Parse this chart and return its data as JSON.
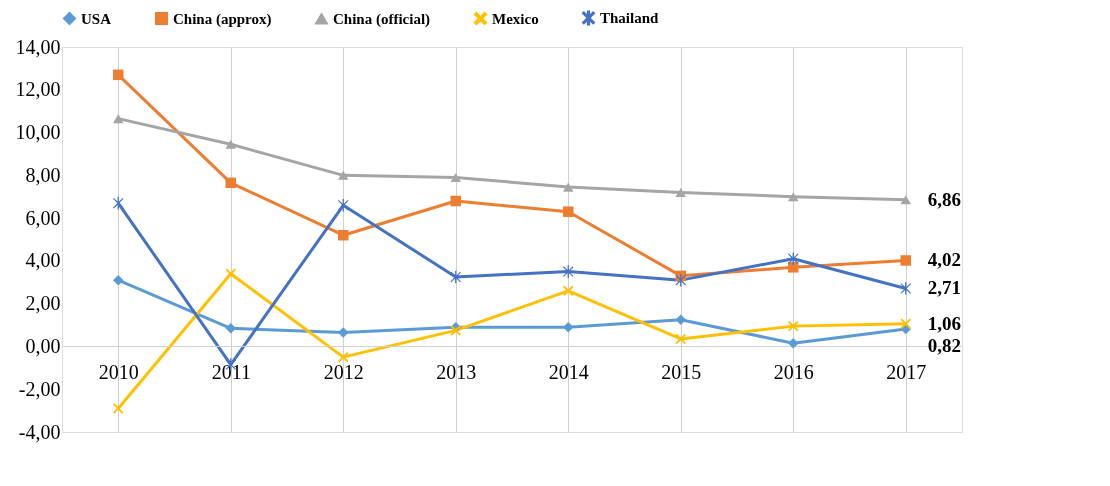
{
  "chart_data": {
    "type": "line",
    "categories": [
      "2010",
      "2011",
      "2012",
      "2013",
      "2014",
      "2015",
      "2016",
      "2017"
    ],
    "series": [
      {
        "name": "USA",
        "color": "#5b9bd5",
        "marker": "diamond",
        "values": [
          3.1,
          0.85,
          0.65,
          0.9,
          0.9,
          1.25,
          0.15,
          0.82
        ],
        "value_labels": [
          null,
          null,
          null,
          null,
          null,
          null,
          null,
          "0,82"
        ]
      },
      {
        "name": "China (approx)",
        "color": "#ed7d31",
        "marker": "square",
        "values": [
          12.7,
          7.65,
          5.2,
          6.8,
          6.3,
          3.3,
          3.7,
          4.02
        ],
        "value_labels": [
          null,
          null,
          null,
          null,
          null,
          null,
          null,
          "4,02"
        ]
      },
      {
        "name": "China (official)",
        "color": "#a5a5a5",
        "marker": "triangle",
        "values": [
          10.65,
          9.45,
          8.0,
          7.9,
          7.45,
          7.2,
          7.0,
          6.86
        ],
        "value_labels": [
          null,
          null,
          null,
          null,
          null,
          null,
          null,
          "6,86"
        ]
      },
      {
        "name": "Mexico",
        "color": "#ffc000",
        "marker": "cross",
        "values": [
          -2.9,
          3.4,
          -0.5,
          0.75,
          2.6,
          0.35,
          0.95,
          1.06
        ],
        "value_labels": [
          null,
          null,
          null,
          null,
          null,
          null,
          null,
          "1,06"
        ]
      },
      {
        "name": "Thailand",
        "color": "#4472c4",
        "marker": "star",
        "values": [
          6.7,
          -0.85,
          6.6,
          3.25,
          3.5,
          3.1,
          4.1,
          2.71
        ],
        "value_labels": [
          null,
          null,
          null,
          null,
          null,
          null,
          null,
          "2,71"
        ]
      }
    ],
    "ylim": [
      -4,
      14
    ],
    "yticks": [
      {
        "value": -4,
        "label": "-4,00"
      },
      {
        "value": -2,
        "label": "-2,00"
      },
      {
        "value": 0,
        "label": "0,00"
      },
      {
        "value": 2,
        "label": "2,00"
      },
      {
        "value": 4,
        "label": "4,00"
      },
      {
        "value": 6,
        "label": "6,00"
      },
      {
        "value": 8,
        "label": "8,00"
      },
      {
        "value": 10,
        "label": "10,00"
      },
      {
        "value": 12,
        "label": "12,00"
      },
      {
        "value": 14,
        "label": "14,00"
      }
    ],
    "grid": "x",
    "legend": "top",
    "line_style": "solid"
  }
}
